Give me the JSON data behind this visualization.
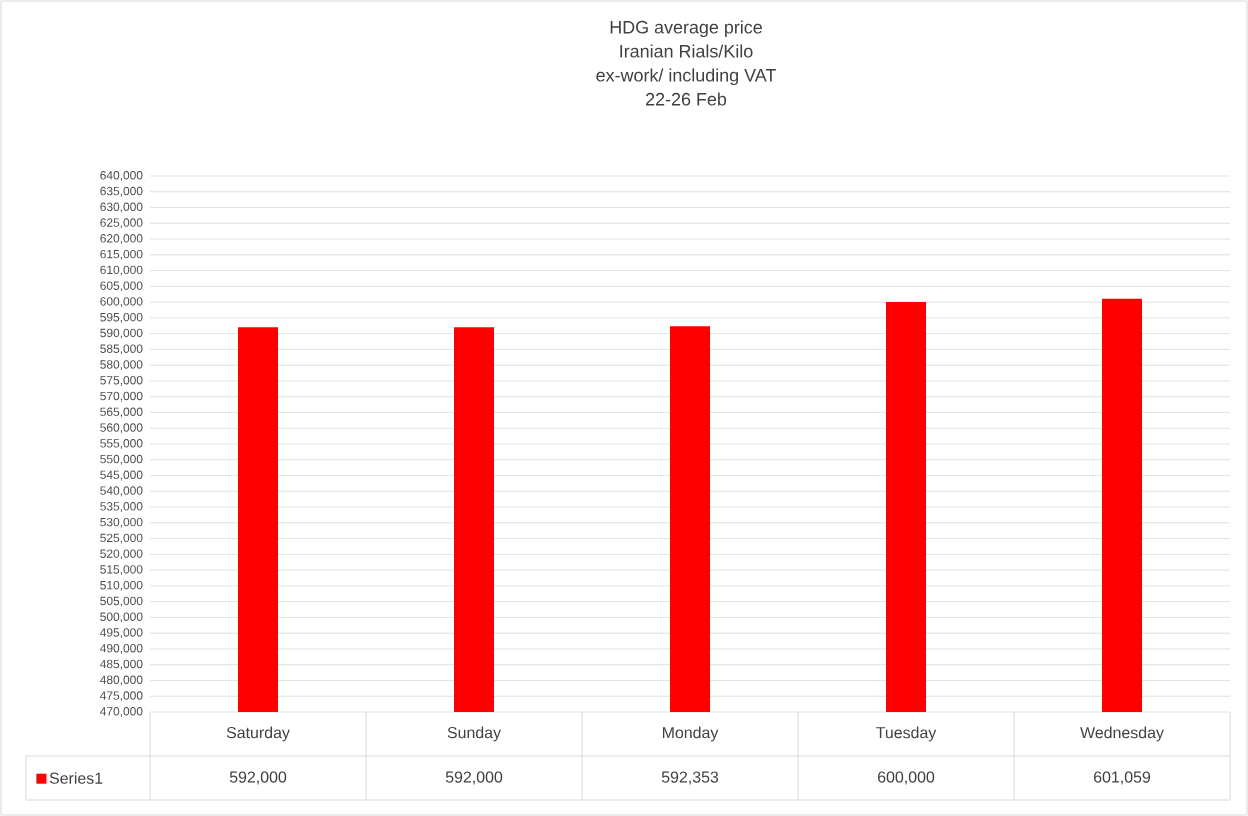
{
  "chart_data": {
    "type": "bar",
    "title": "HDG average  price",
    "subtitle": "Iranian Rials/Kilo",
    "annotations": [
      "ex-work/ including VAT",
      "22-26 Feb"
    ],
    "categories": [
      "Saturday",
      "Sunday",
      "Monday",
      "Tuesday",
      "Wednesday"
    ],
    "series": [
      {
        "name": "Series1",
        "color": "#ff0000",
        "values": [
          592000,
          592000,
          592353,
          600000,
          601059
        ],
        "value_labels": [
          "592,000",
          "592,000",
          "592,353",
          "600,000",
          "601,059"
        ]
      }
    ],
    "ylim": [
      470000,
      640000
    ],
    "yticks": [
      {
        "value": 470000,
        "label": "470,000"
      },
      {
        "value": 475000,
        "label": "475,000"
      },
      {
        "value": 480000,
        "label": "480,000"
      },
      {
        "value": 485000,
        "label": "485,000"
      },
      {
        "value": 490000,
        "label": "490,000"
      },
      {
        "value": 495000,
        "label": "495,000"
      },
      {
        "value": 500000,
        "label": "500,000"
      },
      {
        "value": 505000,
        "label": "505,000"
      },
      {
        "value": 510000,
        "label": "510,000"
      },
      {
        "value": 515000,
        "label": "515,000"
      },
      {
        "value": 520000,
        "label": "520,000"
      },
      {
        "value": 525000,
        "label": "525,000"
      },
      {
        "value": 530000,
        "label": "530,000"
      },
      {
        "value": 535000,
        "label": "535,000"
      },
      {
        "value": 540000,
        "label": "540,000"
      },
      {
        "value": 545000,
        "label": "545,000"
      },
      {
        "value": 550000,
        "label": "550,000"
      },
      {
        "value": 555000,
        "label": "555,000"
      },
      {
        "value": 560000,
        "label": "560,000"
      },
      {
        "value": 565000,
        "label": "565,000"
      },
      {
        "value": 570000,
        "label": "570,000"
      },
      {
        "value": 575000,
        "label": "575,000"
      },
      {
        "value": 580000,
        "label": "580,000"
      },
      {
        "value": 585000,
        "label": "585,000"
      },
      {
        "value": 590000,
        "label": "590,000"
      },
      {
        "value": 595000,
        "label": "595,000"
      },
      {
        "value": 600000,
        "label": "600,000"
      },
      {
        "value": 605000,
        "label": "605,000"
      },
      {
        "value": 610000,
        "label": "610,000"
      },
      {
        "value": 615000,
        "label": "615,000"
      },
      {
        "value": 620000,
        "label": "620,000"
      },
      {
        "value": 625000,
        "label": "625,000"
      },
      {
        "value": 630000,
        "label": "630,000"
      },
      {
        "value": 635000,
        "label": "635,000"
      },
      {
        "value": 640000,
        "label": "640,000"
      }
    ],
    "grid": "y",
    "legend": "bottom"
  }
}
